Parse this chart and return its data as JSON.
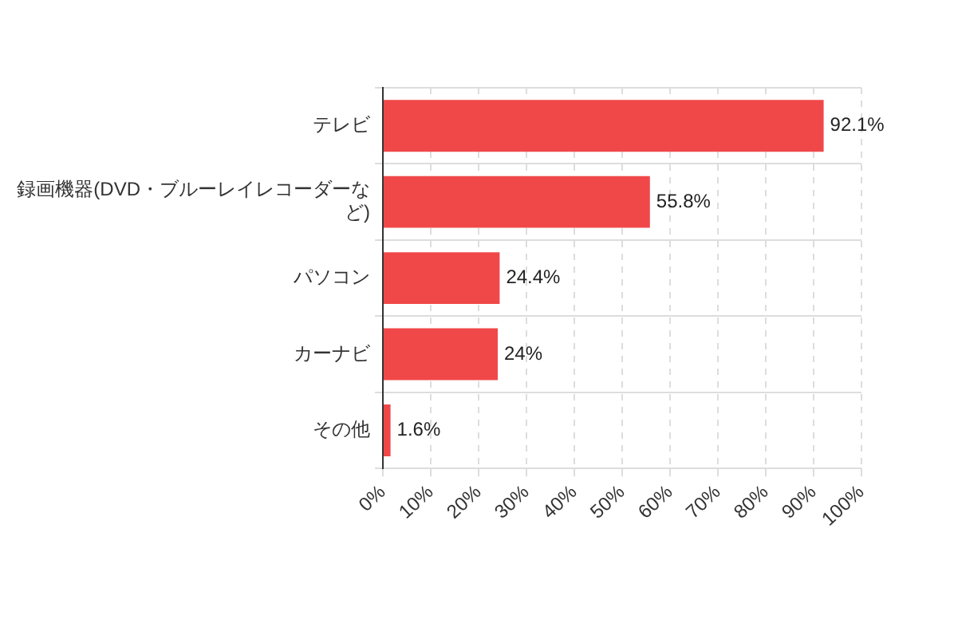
{
  "chart_data": {
    "type": "bar",
    "orientation": "horizontal",
    "categories": [
      "テレビ",
      "録画機器(DVD・ブルーレイレコーダーなど)",
      "パソコン",
      "カーナビ",
      "その他"
    ],
    "values": [
      92.1,
      55.8,
      24.4,
      24,
      1.6
    ],
    "value_labels": [
      "92.1%",
      "55.8%",
      "24.4%",
      "24%",
      "1.6%"
    ],
    "color": "#f04848",
    "xlim": [
      0,
      100
    ],
    "xticks": [
      {
        "value": 0,
        "label": "0%"
      },
      {
        "value": 10,
        "label": "10%"
      },
      {
        "value": 20,
        "label": "20%"
      },
      {
        "value": 30,
        "label": "30%"
      },
      {
        "value": 40,
        "label": "40%"
      },
      {
        "value": 50,
        "label": "50%"
      },
      {
        "value": 60,
        "label": "60%"
      },
      {
        "value": 70,
        "label": "70%"
      },
      {
        "value": 80,
        "label": "80%"
      },
      {
        "value": 90,
        "label": "90%"
      },
      {
        "value": 100,
        "label": "100%"
      }
    ],
    "grid": true,
    "legend": false
  }
}
